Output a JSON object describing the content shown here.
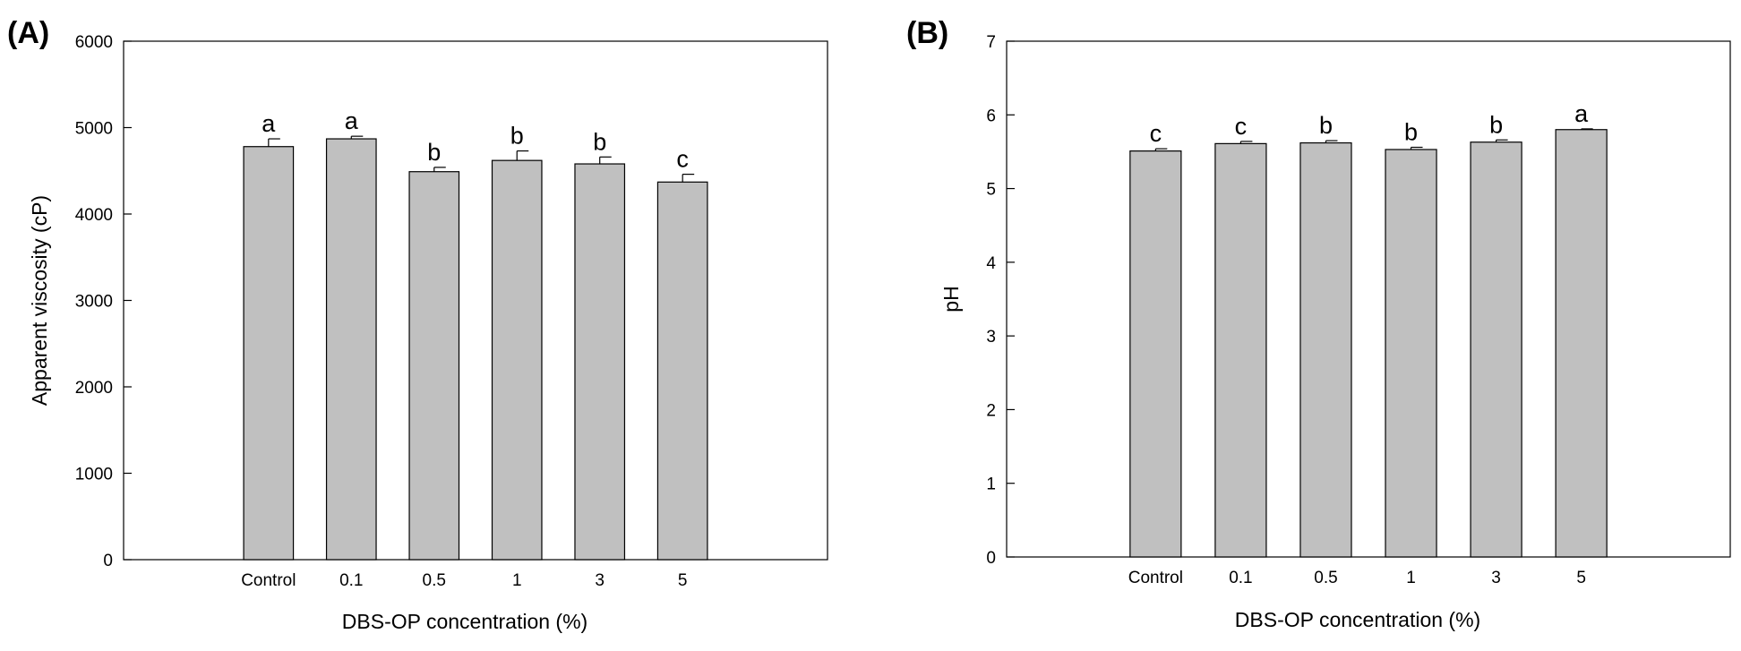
{
  "chart_data": [
    {
      "panel_label": "(A)",
      "type": "bar",
      "categories": [
        "Control",
        "0.1",
        "0.5",
        "1",
        "3",
        "5"
      ],
      "values": [
        4780,
        4870,
        4490,
        4620,
        4580,
        4370
      ],
      "errors": [
        90,
        30,
        50,
        110,
        80,
        90
      ],
      "significance": [
        "a",
        "a",
        "b",
        "b",
        "b",
        "c"
      ],
      "ylim": [
        0,
        6000
      ],
      "yticks": [
        0,
        1000,
        2000,
        3000,
        4000,
        5000,
        6000
      ],
      "xlabel": "DBS-OP concentration (%)",
      "ylabel": "Apparent viscosity (cP)",
      "bar_color": "#c0c0c0"
    },
    {
      "panel_label": "(B)",
      "type": "bar",
      "categories": [
        "Control",
        "0.1",
        "0.5",
        "1",
        "3",
        "5"
      ],
      "values": [
        5.51,
        5.61,
        5.62,
        5.53,
        5.63,
        5.8
      ],
      "errors": [
        0.03,
        0.03,
        0.03,
        0.03,
        0.03,
        0.01
      ],
      "significance": [
        "c",
        "c",
        "b",
        "b",
        "b",
        "a"
      ],
      "ylim": [
        0,
        7
      ],
      "yticks": [
        0,
        1,
        2,
        3,
        4,
        5,
        6,
        7
      ],
      "xlabel": "DBS-OP concentration (%)",
      "ylabel": "pH",
      "bar_color": "#c0c0c0"
    }
  ]
}
